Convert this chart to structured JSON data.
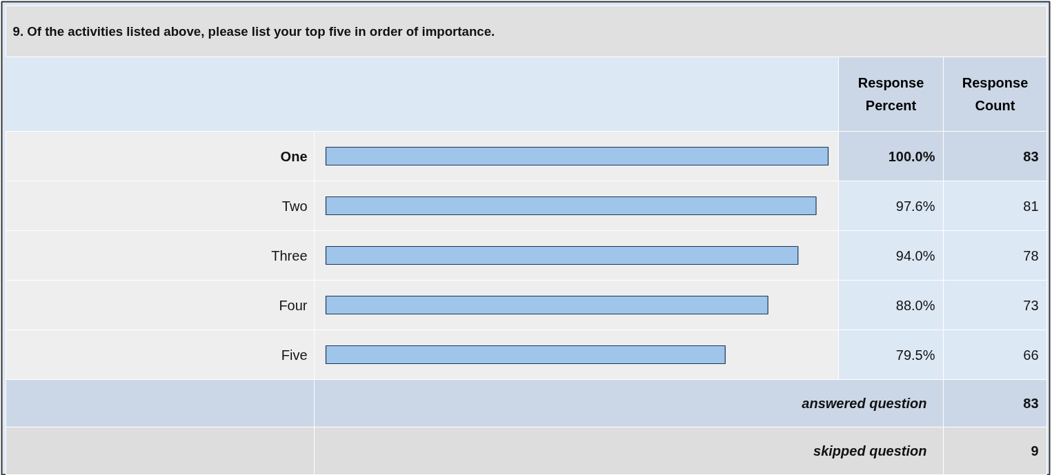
{
  "chart_data": {
    "type": "bar",
    "orientation": "horizontal",
    "title": "9. Of the activities listed above, please list your top five in order of importance.",
    "categories": [
      "One",
      "Two",
      "Three",
      "Four",
      "Five"
    ],
    "values": [
      100.0,
      97.6,
      94.0,
      88.0,
      79.5
    ],
    "value_labels": [
      "100.0%",
      "97.6%",
      "94.0%",
      "88.0%",
      "79.5%"
    ],
    "color": "#9fc6ea",
    "xlim": [
      0,
      100
    ],
    "annotations": [
      "Response Percent",
      "Response Count",
      "83",
      "81",
      "78",
      "73",
      "66",
      "answered question",
      "83",
      "skipped question",
      "9"
    ]
  }
}
